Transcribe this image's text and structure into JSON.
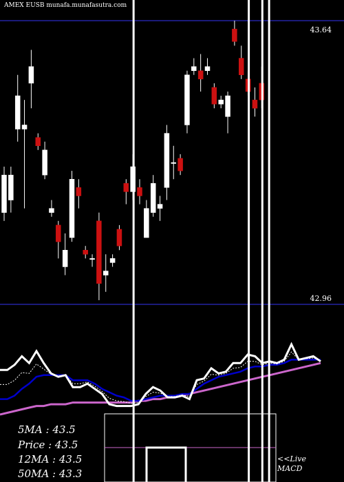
{
  "header": "AMEX  EUSB munafa.munafasutra.com",
  "stats": {
    "ma5": "5MA : 43.5",
    "price": "Price  : 43.5",
    "ma12": "12MA : 43.5",
    "ma50": "50MA : 43.3"
  },
  "panel": {
    "live": "<<Live",
    "macd": "MACD"
  },
  "colors": {
    "background": "#000000",
    "up": "#ffffff",
    "down": "#cc1111",
    "level_line": "#1a1a7a",
    "ma_fast": "#ffffff",
    "ma_mid": "#0000cc",
    "ma_slow": "#cc66cc"
  },
  "chart_data": {
    "type": "candlestick",
    "ylim": [
      42.96,
      43.64
    ],
    "levels": {
      "upper": "43.64",
      "lower": "42.96"
    },
    "candles": [
      {
        "o": 43.18,
        "c": 43.27,
        "h": 43.29,
        "l": 43.16,
        "up": true
      },
      {
        "o": 43.21,
        "c": 43.27,
        "h": 43.29,
        "l": 43.18,
        "up": true
      },
      {
        "o": 43.38,
        "c": 43.46,
        "h": 43.51,
        "l": 43.35,
        "up": true
      },
      {
        "o": 43.38,
        "c": 43.39,
        "h": 43.45,
        "l": 43.19,
        "up": true
      },
      {
        "o": 43.49,
        "c": 43.53,
        "h": 43.57,
        "l": 43.43,
        "up": true
      },
      {
        "o": 43.36,
        "c": 43.34,
        "h": 43.37,
        "l": 43.33,
        "up": false
      },
      {
        "o": 43.27,
        "c": 43.33,
        "h": 43.35,
        "l": 43.26,
        "up": true
      },
      {
        "o": 43.18,
        "c": 43.19,
        "h": 43.21,
        "l": 43.17,
        "up": true
      },
      {
        "o": 43.15,
        "c": 43.11,
        "h": 43.16,
        "l": 43.07,
        "up": false
      },
      {
        "o": 43.05,
        "c": 43.09,
        "h": 43.13,
        "l": 43.03,
        "up": true
      },
      {
        "o": 43.12,
        "c": 43.26,
        "h": 43.28,
        "l": 43.11,
        "up": true
      },
      {
        "o": 43.24,
        "c": 43.22,
        "h": 43.26,
        "l": 43.19,
        "up": false
      },
      {
        "o": 43.09,
        "c": 43.08,
        "h": 43.1,
        "l": 43.07,
        "up": false
      },
      {
        "o": 43.07,
        "c": 43.07,
        "h": 43.08,
        "l": 43.05,
        "up": true
      },
      {
        "o": 43.16,
        "c": 43.01,
        "h": 43.18,
        "l": 42.97,
        "up": false
      },
      {
        "o": 43.03,
        "c": 43.04,
        "h": 43.08,
        "l": 42.99,
        "up": true
      },
      {
        "o": 43.06,
        "c": 43.07,
        "h": 43.08,
        "l": 43.05,
        "up": true
      },
      {
        "o": 43.14,
        "c": 43.1,
        "h": 43.15,
        "l": 43.09,
        "up": false
      },
      {
        "o": 43.25,
        "c": 43.23,
        "h": 43.26,
        "l": 43.2,
        "up": false
      },
      {
        "o": 43.23,
        "c": 43.29,
        "h": 43.32,
        "l": 43.21,
        "up": true
      },
      {
        "o": 43.24,
        "c": 43.22,
        "h": 43.26,
        "l": 43.2,
        "up": false
      },
      {
        "o": 43.12,
        "c": 43.19,
        "h": 43.21,
        "l": 43.12,
        "up": true
      },
      {
        "o": 43.18,
        "c": 43.25,
        "h": 43.27,
        "l": 43.17,
        "up": true
      },
      {
        "o": 43.19,
        "c": 43.2,
        "h": 43.22,
        "l": 43.16,
        "up": true
      },
      {
        "o": 43.24,
        "c": 43.37,
        "h": 43.39,
        "l": 43.21,
        "up": true
      },
      {
        "o": 43.3,
        "c": 43.3,
        "h": 43.34,
        "l": 43.26,
        "up": true
      },
      {
        "o": 43.31,
        "c": 43.28,
        "h": 43.32,
        "l": 43.27,
        "up": false
      },
      {
        "o": 43.39,
        "c": 43.51,
        "h": 43.52,
        "l": 43.37,
        "up": true
      },
      {
        "o": 43.52,
        "c": 43.53,
        "h": 43.55,
        "l": 43.51,
        "up": true
      },
      {
        "o": 43.52,
        "c": 43.5,
        "h": 43.56,
        "l": 43.47,
        "up": false
      },
      {
        "o": 43.52,
        "c": 43.53,
        "h": 43.55,
        "l": 43.51,
        "up": true
      },
      {
        "o": 43.48,
        "c": 43.44,
        "h": 43.49,
        "l": 43.43,
        "up": false
      },
      {
        "o": 43.44,
        "c": 43.45,
        "h": 43.46,
        "l": 43.43,
        "up": true
      },
      {
        "o": 43.41,
        "c": 43.46,
        "h": 43.47,
        "l": 43.37,
        "up": true
      },
      {
        "o": 43.62,
        "c": 43.59,
        "h": 43.64,
        "l": 43.58,
        "up": false
      },
      {
        "o": 43.55,
        "c": 43.51,
        "h": 43.58,
        "l": 43.5,
        "up": false
      },
      {
        "o": 43.5,
        "c": 43.47,
        "h": 43.52,
        "l": 43.46,
        "up": false
      },
      {
        "o": 43.45,
        "c": 43.43,
        "h": 43.48,
        "l": 43.41,
        "up": false
      },
      {
        "o": 43.49,
        "c": 43.45,
        "h": 43.53,
        "l": 43.43,
        "up": false
      }
    ],
    "indicator": {
      "fast": [
        43.36,
        43.36,
        43.39,
        43.44,
        43.4,
        43.47,
        43.4,
        43.34,
        43.32,
        43.33,
        43.26,
        43.26,
        43.28,
        43.25,
        43.22,
        43.16,
        43.15,
        43.15,
        43.15,
        43.16,
        43.22,
        43.26,
        43.24,
        43.2,
        43.2,
        43.21,
        43.19,
        43.3,
        43.31,
        43.37,
        43.34,
        43.35,
        43.4,
        43.4,
        43.45,
        43.44,
        43.4,
        43.41,
        43.4,
        43.42,
        43.51,
        43.42,
        43.43,
        43.44,
        43.41
      ],
      "mid": [
        43.19,
        43.19,
        43.21,
        43.25,
        43.28,
        43.32,
        43.33,
        43.33,
        43.33,
        43.33,
        43.3,
        43.3,
        43.3,
        43.28,
        43.25,
        43.23,
        43.21,
        43.2,
        43.18,
        43.18,
        43.19,
        43.2,
        43.21,
        43.21,
        43.21,
        43.22,
        43.22,
        43.25,
        43.28,
        43.3,
        43.32,
        43.33,
        43.34,
        43.35,
        43.37,
        43.38,
        43.38,
        43.39,
        43.39,
        43.4,
        43.42,
        43.42,
        43.42,
        43.42,
        43.42
      ],
      "slow": [
        43.1,
        43.11,
        43.12,
        43.13,
        43.14,
        43.15,
        43.15,
        43.16,
        43.16,
        43.16,
        43.17,
        43.17,
        43.17,
        43.17,
        43.17,
        43.17,
        43.17,
        43.17,
        43.17,
        43.18,
        43.18,
        43.19,
        43.19,
        43.2,
        43.2,
        43.21,
        43.22,
        43.23,
        43.24,
        43.25,
        43.26,
        43.27,
        43.28,
        43.29,
        43.3,
        43.31,
        43.32,
        43.33,
        43.34,
        43.35,
        43.36,
        43.37,
        43.38,
        43.39,
        43.4
      ]
    },
    "markers": [
      {
        "index": 19,
        "kind": "vertical"
      },
      {
        "index": 36,
        "kind": "vertical"
      },
      {
        "index": 38,
        "kind": "vertical"
      },
      {
        "index": 39,
        "kind": "vertical"
      }
    ]
  }
}
